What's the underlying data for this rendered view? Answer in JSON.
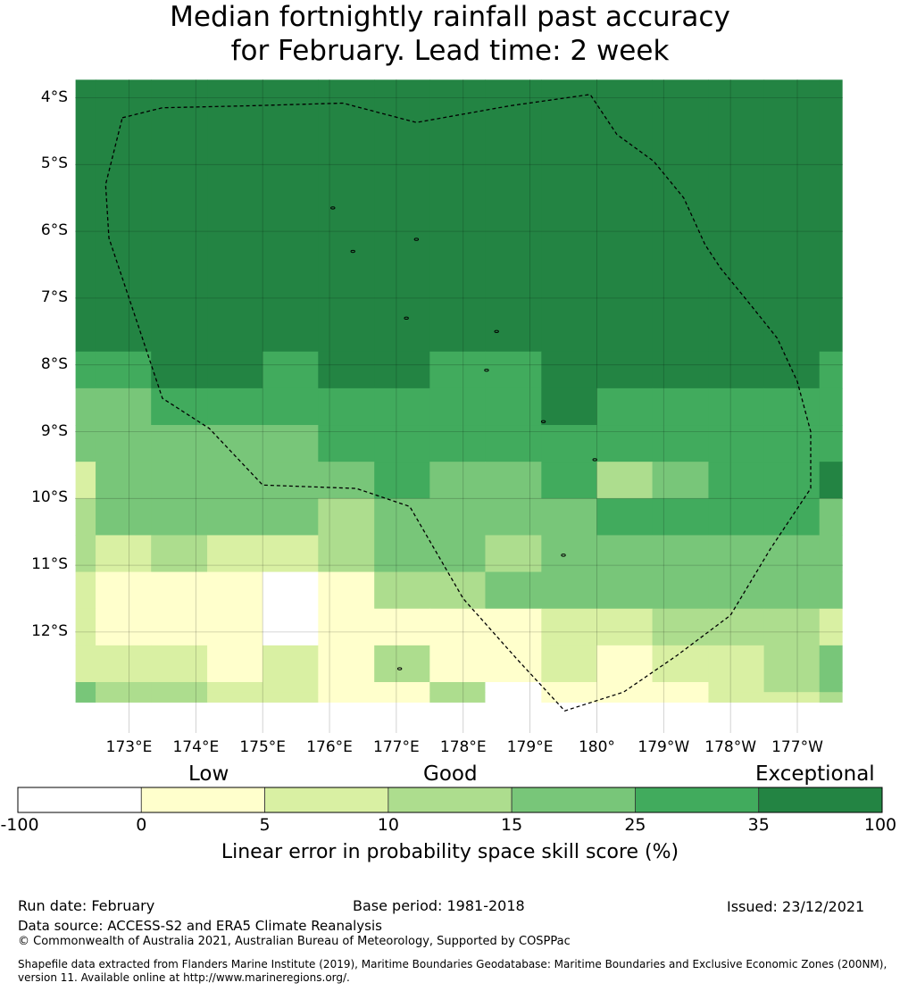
{
  "title": {
    "line1": "Median fortnightly rainfall past accuracy",
    "line2": "for February. Lead time: 2 week"
  },
  "map": {
    "lat_labels": [
      "4°S",
      "5°S",
      "6°S",
      "7°S",
      "8°S",
      "9°S",
      "10°S",
      "11°S",
      "12°S"
    ],
    "lon_labels": [
      "173°E",
      "174°E",
      "175°E",
      "176°E",
      "177°E",
      "178°E",
      "179°E",
      "180°",
      "179°W",
      "178°W",
      "177°W"
    ],
    "lat_values": [
      -4,
      -5,
      -6,
      -7,
      -8,
      -9,
      -10,
      -11,
      -12
    ],
    "lon_values": [
      173,
      174,
      175,
      176,
      177,
      178,
      179,
      180,
      181,
      182,
      183
    ],
    "extent": {
      "lon_min": 172.2,
      "lon_max": 183.67,
      "lat_min": -13.05,
      "lat_max": -3.73
    },
    "grid_lon_edges": [
      172.2,
      172.5,
      173.33,
      174.17,
      175.0,
      175.83,
      176.67,
      177.5,
      178.33,
      179.17,
      180.0,
      180.83,
      181.67,
      182.5,
      183.33,
      183.67
    ],
    "grid_lat_edges": [
      -3.73,
      -7.8,
      -8.35,
      -8.9,
      -9.45,
      -10.0,
      -10.55,
      -11.1,
      -11.65,
      -12.2,
      -12.75,
      -12.9,
      -13.05
    ],
    "grid": [
      [
        6,
        6,
        6,
        6,
        6,
        6,
        6,
        6,
        6,
        6,
        6,
        6,
        6,
        6,
        6
      ],
      [
        5,
        5,
        6,
        6,
        5,
        6,
        6,
        5,
        5,
        6,
        6,
        6,
        6,
        6,
        5
      ],
      [
        4,
        4,
        5,
        5,
        5,
        5,
        5,
        5,
        5,
        6,
        5,
        5,
        5,
        5,
        5
      ],
      [
        4,
        4,
        4,
        4,
        4,
        5,
        5,
        5,
        5,
        5,
        5,
        5,
        5,
        5,
        5
      ],
      [
        2,
        4,
        4,
        4,
        4,
        4,
        5,
        4,
        4,
        5,
        3,
        4,
        5,
        5,
        6
      ],
      [
        3,
        4,
        4,
        4,
        4,
        3,
        4,
        4,
        4,
        4,
        5,
        5,
        5,
        5,
        4
      ],
      [
        3,
        2,
        3,
        2,
        2,
        3,
        4,
        4,
        3,
        4,
        4,
        4,
        4,
        4,
        4
      ],
      [
        2,
        1,
        1,
        1,
        0,
        1,
        3,
        3,
        4,
        4,
        4,
        4,
        4,
        4,
        4
      ],
      [
        2,
        1,
        1,
        1,
        0,
        1,
        1,
        1,
        1,
        2,
        2,
        3,
        3,
        3,
        2
      ],
      [
        2,
        2,
        2,
        1,
        2,
        1,
        3,
        1,
        1,
        2,
        1,
        2,
        2,
        3,
        4
      ],
      [
        4,
        3,
        3,
        2,
        2,
        1,
        1,
        3,
        0,
        1,
        1,
        1,
        2,
        3,
        4
      ],
      [
        4,
        3,
        3,
        2,
        2,
        1,
        1,
        3,
        0,
        1,
        1,
        1,
        2,
        2,
        3
      ]
    ],
    "eez_boundary": [
      [
        172.9,
        -4.3
      ],
      [
        173.5,
        -4.15
      ],
      [
        174.8,
        -4.12
      ],
      [
        176.2,
        -4.08
      ],
      [
        177.3,
        -4.37
      ],
      [
        178.7,
        -4.12
      ],
      [
        179.9,
        -3.95
      ],
      [
        180.3,
        -4.55
      ],
      [
        180.85,
        -4.95
      ],
      [
        181.3,
        -5.5
      ],
      [
        181.62,
        -6.2
      ],
      [
        181.85,
        -6.55
      ],
      [
        182.3,
        -7.1
      ],
      [
        182.7,
        -7.6
      ],
      [
        183.0,
        -8.25
      ],
      [
        183.2,
        -9.0
      ],
      [
        183.2,
        -9.85
      ],
      [
        182.6,
        -10.75
      ],
      [
        182.0,
        -11.75
      ],
      [
        181.2,
        -12.35
      ],
      [
        180.4,
        -12.9
      ],
      [
        179.52,
        -13.18
      ],
      [
        178.8,
        -12.4
      ],
      [
        178.0,
        -11.5
      ],
      [
        177.2,
        -10.12
      ],
      [
        176.4,
        -9.85
      ],
      [
        175.0,
        -9.8
      ],
      [
        174.2,
        -8.95
      ],
      [
        173.5,
        -8.5
      ],
      [
        173.1,
        -7.3
      ],
      [
        172.7,
        -6.1
      ],
      [
        172.65,
        -5.3
      ],
      [
        172.9,
        -4.3
      ]
    ],
    "islands": [
      [
        176.05,
        -5.65
      ],
      [
        176.35,
        -6.3
      ],
      [
        177.3,
        -6.12
      ],
      [
        177.15,
        -7.3
      ],
      [
        178.5,
        -7.5
      ],
      [
        178.35,
        -8.08
      ],
      [
        179.2,
        -8.85
      ],
      [
        179.97,
        -9.42
      ],
      [
        179.5,
        -10.85
      ],
      [
        177.05,
        -12.55
      ]
    ]
  },
  "colorbar": {
    "categories": {
      "low": "Low",
      "good": "Good",
      "exceptional": "Exceptional"
    },
    "ticks": [
      "-100",
      "0",
      "5",
      "10",
      "15",
      "25",
      "35",
      "100"
    ],
    "colors": [
      "#ffffff",
      "#ffffcc",
      "#d9f0a3",
      "#addd8e",
      "#78c679",
      "#41ab5d",
      "#238443"
    ],
    "label": "Linear error in probability space skill score (%)"
  },
  "footer": {
    "run_date": "Run date: February",
    "base_period": "Base period: 1981-2018",
    "issued": "Issued: 23/12/2021",
    "data_source": "Data source: ACCESS-S2 and ERA5 Climate Reanalysis",
    "copyright": "© Commonwealth of Australia 2021, Australian Bureau of Meteorology, Supported by COSPPac",
    "shapefile": "Shapefile data extracted from Flanders Marine Institute (2019), Maritime Boundaries Geodatabase: Maritime Boundaries and Exclusive Economic Zones (200NM), version 11. Available online at http://www.marineregions.org/."
  }
}
